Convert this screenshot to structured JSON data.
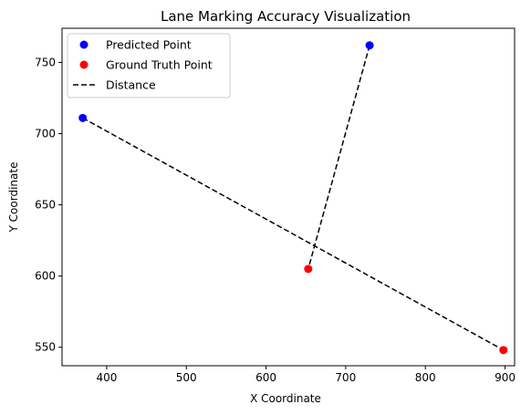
{
  "chart_data": {
    "type": "scatter",
    "title": "Lane Marking Accuracy Visualization",
    "xlabel": "X Coordinate",
    "ylabel": "Y Coordinate",
    "xlim": [
      344,
      912
    ],
    "ylim": [
      537,
      774
    ],
    "xticks": [
      400,
      500,
      600,
      700,
      800,
      900
    ],
    "yticks": [
      550,
      600,
      650,
      700,
      750
    ],
    "grid": false,
    "legend_position": "top-left",
    "series": [
      {
        "name": "Predicted Point",
        "kind": "points",
        "color": "#0000ff",
        "points": [
          {
            "x": 370,
            "y": 711
          },
          {
            "x": 730,
            "y": 762
          }
        ]
      },
      {
        "name": "Ground Truth Point",
        "kind": "points",
        "color": "#ff0000",
        "points": [
          {
            "x": 653,
            "y": 605
          },
          {
            "x": 898,
            "y": 548
          }
        ]
      },
      {
        "name": "Distance",
        "kind": "dashed-lines",
        "color": "#000000",
        "segments": [
          [
            {
              "x": 370,
              "y": 711
            },
            {
              "x": 898,
              "y": 548
            }
          ],
          [
            {
              "x": 730,
              "y": 762
            },
            {
              "x": 653,
              "y": 605
            }
          ]
        ]
      }
    ]
  }
}
